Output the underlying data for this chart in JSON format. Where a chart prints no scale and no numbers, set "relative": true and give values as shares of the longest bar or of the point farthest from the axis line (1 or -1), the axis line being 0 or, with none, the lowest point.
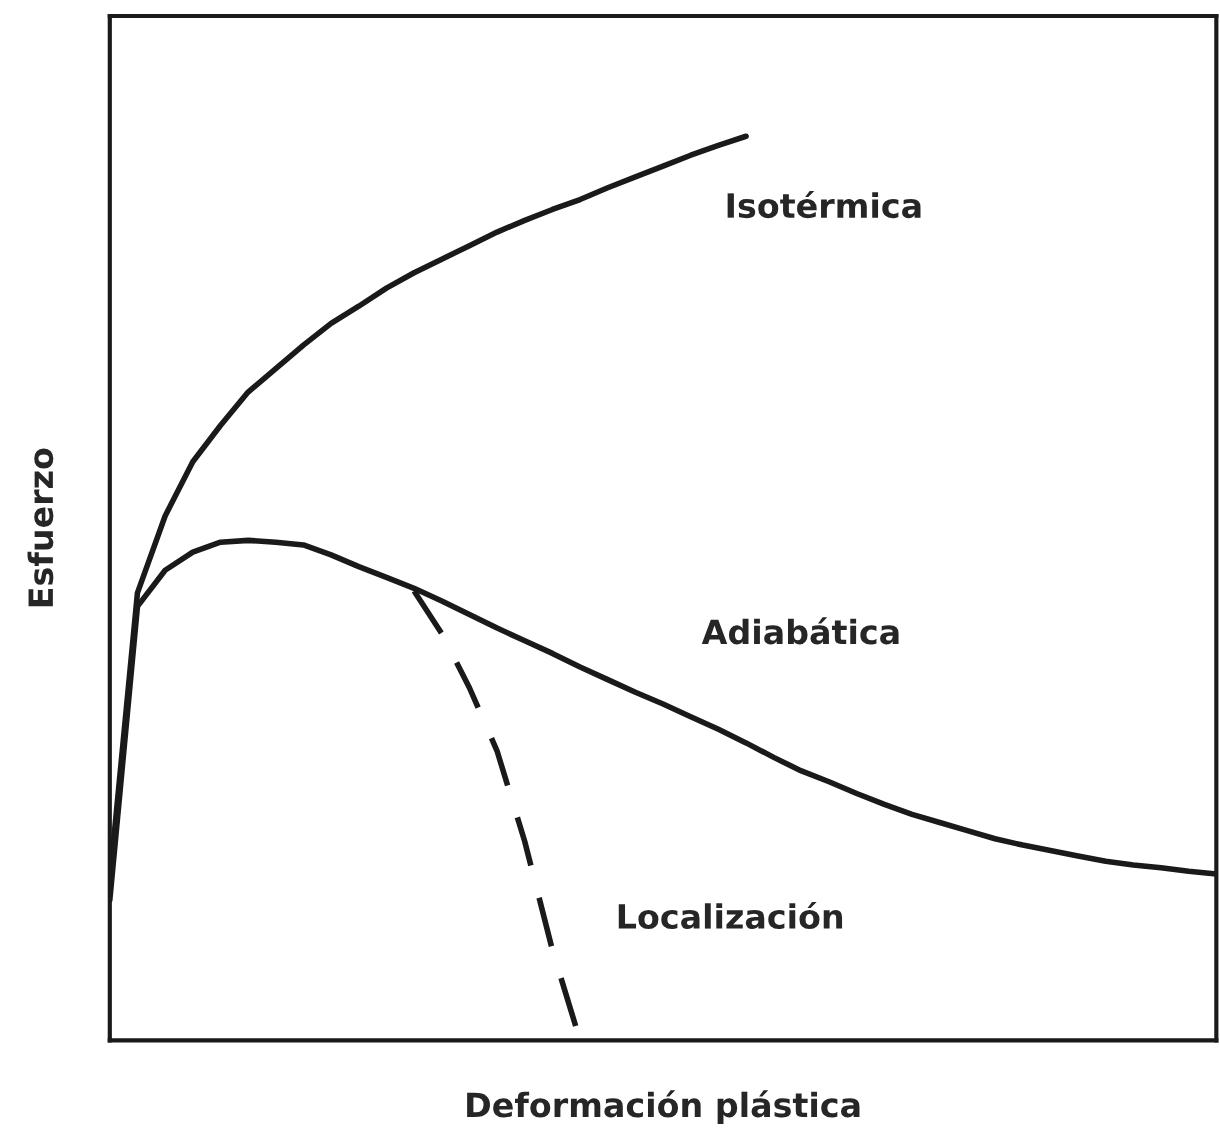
{
  "chart_data": {
    "type": "line",
    "relative": true,
    "xlabel": "Deformación plástica",
    "ylabel": "Esfuerzo",
    "tick_labels": false,
    "legend": false,
    "categories": [
      null,
      null,
      null,
      null,
      null,
      null,
      null,
      null,
      null,
      null,
      null,
      null,
      null,
      null,
      null,
      null,
      null,
      null,
      null,
      null,
      null,
      null,
      null,
      null,
      null,
      null,
      null,
      null,
      null,
      null,
      null,
      null,
      null,
      null,
      null,
      null,
      null,
      null,
      null,
      null,
      null
    ],
    "series": [
      {
        "name": "Isotérmica",
        "color": "#1a1a1a",
        "line_style": "solid",
        "values": [
          0.177,
          0.495,
          0.58,
          0.64,
          0.68,
          0.717,
          0.743,
          0.769,
          0.793,
          0.812,
          0.832,
          0.849,
          0.864,
          0.879,
          0.894,
          0.907,
          0.919,
          0.93,
          0.943,
          0.955,
          0.967,
          0.979,
          0.99,
          1,
          null,
          null,
          null,
          null,
          null,
          null,
          null,
          null,
          null,
          null,
          null,
          null,
          null,
          null,
          null,
          null,
          null
        ]
      },
      {
        "name": "Adiabática",
        "color": "#1a1a1a",
        "line_style": "solid",
        "values": [
          0.155,
          0.48,
          0.52,
          0.54,
          0.551,
          0.553,
          0.551,
          0.548,
          0.537,
          0.524,
          0.512,
          0.5,
          0.486,
          0.471,
          0.456,
          0.442,
          0.428,
          0.413,
          0.399,
          0.385,
          0.372,
          0.358,
          0.344,
          0.329,
          0.313,
          0.298,
          0.286,
          0.273,
          0.261,
          0.25,
          0.241,
          0.232,
          0.223,
          0.216,
          0.21,
          0.204,
          0.198,
          0.194,
          0.191,
          0.187,
          0.184
        ]
      },
      {
        "name": "Localización",
        "color": "#1a1a1a",
        "line_style": "dashed",
        "values": [
          null,
          null,
          null,
          null,
          null,
          null,
          null,
          null,
          null,
          null,
          null,
          0.497,
          0.45,
          0.39,
          0.32,
          0.22,
          0.1,
          0,
          null,
          null,
          null,
          null,
          null,
          null,
          null,
          null,
          null,
          null,
          null,
          null,
          null,
          null,
          null,
          null,
          null,
          null,
          null,
          null,
          null,
          null,
          null
        ]
      }
    ]
  }
}
